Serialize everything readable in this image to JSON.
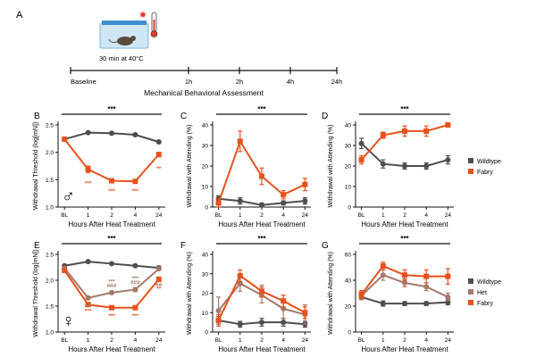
{
  "figure": {
    "panel_a": {
      "label": "A",
      "condition_label": "30 min at 40°C",
      "timeline_ticks": [
        "Baseline",
        "1h",
        "2h",
        "4h",
        "24h"
      ],
      "timeline_title": "Mechanical Behavioral Assessment"
    },
    "colors": {
      "wildtype": "#4d4d4d",
      "fabry": "#e8511c",
      "het": "#a6786a",
      "sig_fabry": "#e8511c",
      "sig_het": "#a6786a",
      "heat_mark": "#e53b2c",
      "cage": "#cfe7f5"
    }
  },
  "chart_data": [
    {
      "id": "B",
      "label": "B",
      "type": "line",
      "title": "",
      "sex_symbol": "♂",
      "xlabel": "Hours After Heat Treatment",
      "ylabel": "Withdrawal Threshold (log[mN])",
      "categories": [
        "BL",
        "1",
        "2",
        "4",
        "24"
      ],
      "ylim": [
        1.0,
        2.5
      ],
      "yticks": [
        1.0,
        1.5,
        2.0,
        2.5
      ],
      "ytick_labels": [
        "1.0",
        "1.5",
        "2.0",
        "2.5"
      ],
      "overall_sig": "***",
      "series": [
        {
          "name": "Wildtype",
          "color_key": "wildtype",
          "values": [
            2.24,
            2.36,
            2.35,
            2.32,
            2.19
          ],
          "errors": [
            0.02,
            0.02,
            0.02,
            0.02,
            0.02
          ]
        },
        {
          "name": "Fabry",
          "color_key": "fabry",
          "values": [
            2.24,
            1.69,
            1.48,
            1.47,
            1.96
          ],
          "errors": [
            0.03,
            0.06,
            0.03,
            0.03,
            0.04
          ]
        }
      ],
      "annotations": [
        {
          "x": "1",
          "y": 1.4,
          "text": "***",
          "color_key": "sig_fabry"
        },
        {
          "x": "2",
          "y": 1.26,
          "text": "***",
          "color_key": "sig_fabry"
        },
        {
          "x": "4",
          "y": 1.26,
          "text": "***",
          "color_key": "sig_fabry"
        },
        {
          "x": "24",
          "y": 1.67,
          "text": "**",
          "color_key": "sig_fabry"
        }
      ],
      "legend": []
    },
    {
      "id": "C",
      "label": "C",
      "type": "line",
      "title": "",
      "sex_symbol": "",
      "xlabel": "Hours After Heat Treatment",
      "ylabel": "Withdrawal with Attending (%)",
      "categories": [
        "BL",
        "1",
        "2",
        "4",
        "24"
      ],
      "ylim": [
        0,
        40
      ],
      "yticks": [
        0,
        10,
        20,
        30,
        40
      ],
      "ytick_labels": [
        "0",
        "10",
        "20",
        "30",
        "40"
      ],
      "overall_sig": "***",
      "series": [
        {
          "name": "Wildtype",
          "color_key": "wildtype",
          "values": [
            4,
            3,
            1,
            2,
            3
          ],
          "errors": [
            1.5,
            1.5,
            1,
            1,
            1.5
          ]
        },
        {
          "name": "Fabry",
          "color_key": "fabry",
          "values": [
            2,
            32,
            15,
            6,
            11
          ],
          "errors": [
            2,
            5,
            4,
            2,
            3
          ]
        }
      ],
      "annotations": [],
      "legend": []
    },
    {
      "id": "D",
      "label": "D",
      "type": "line",
      "title": "",
      "sex_symbol": "",
      "xlabel": "Hours After Heat Treatment",
      "ylabel": "Withdrawal with Attending (%)",
      "categories": [
        "BL",
        "1",
        "2",
        "4",
        "24"
      ],
      "ylim": [
        0,
        40
      ],
      "yticks": [
        0,
        10,
        20,
        30,
        40
      ],
      "ytick_labels": [
        "0",
        "10",
        "20",
        "30",
        "40"
      ],
      "overall_sig": "***",
      "series": [
        {
          "name": "Wildtype",
          "color_key": "wildtype",
          "values": [
            31,
            21,
            20,
            20,
            23
          ],
          "errors": [
            2.5,
            2,
            1.5,
            1.5,
            2
          ]
        },
        {
          "name": "Fabry",
          "color_key": "fabry",
          "values": [
            23,
            35,
            37,
            37,
            40
          ],
          "errors": [
            2,
            1.5,
            2.5,
            2.5,
            1
          ]
        }
      ],
      "annotations": [],
      "legend": [
        "Wildtype",
        "Fabry"
      ]
    },
    {
      "id": "E",
      "label": "E",
      "type": "line",
      "title": "",
      "sex_symbol": "♀",
      "xlabel": "Hours After Heat Treatment",
      "ylabel": "Withdrawal Threshold (log[mN])",
      "categories": [
        "BL",
        "1",
        "2",
        "4",
        "24"
      ],
      "ylim": [
        1.0,
        2.5
      ],
      "yticks": [
        1.0,
        1.5,
        2.0,
        2.5
      ],
      "ytick_labels": [
        "1.0",
        "1.5",
        "2.0",
        "2.5"
      ],
      "overall_sig": "***",
      "series": [
        {
          "name": "Wildtype",
          "color_key": "wildtype",
          "values": [
            2.28,
            2.36,
            2.32,
            2.28,
            2.24
          ],
          "errors": [
            0.02,
            0.02,
            0.02,
            0.02,
            0.03
          ]
        },
        {
          "name": "Het",
          "color_key": "het",
          "values": [
            2.23,
            1.66,
            1.76,
            1.82,
            2.22
          ],
          "errors": [
            0.03,
            0.03,
            0.03,
            0.04,
            0.03
          ]
        },
        {
          "name": "Fabry",
          "color_key": "fabry",
          "values": [
            2.19,
            1.53,
            1.47,
            1.47,
            2.02
          ],
          "errors": [
            0.03,
            0.02,
            0.02,
            0.02,
            0.04
          ]
        }
      ],
      "annotations": [
        {
          "x": "1",
          "y": 1.46,
          "text": "***",
          "color_key": "sig_het"
        },
        {
          "x": "1",
          "y": 1.37,
          "text": "***",
          "color_key": "sig_fabry"
        },
        {
          "x": "2",
          "y": 1.94,
          "text": "***",
          "color_key": "sig_het"
        },
        {
          "x": "2",
          "y": 1.86,
          "text": "###",
          "color_key": "sig_het"
        },
        {
          "x": "2",
          "y": 1.28,
          "text": "***",
          "color_key": "sig_fabry"
        },
        {
          "x": "4",
          "y": 2.0,
          "text": "***",
          "color_key": "sig_het"
        },
        {
          "x": "4",
          "y": 1.92,
          "text": "###",
          "color_key": "sig_het"
        },
        {
          "x": "4",
          "y": 1.28,
          "text": "***",
          "color_key": "sig_fabry"
        },
        {
          "x": "24",
          "y": 1.88,
          "text": "##",
          "color_key": "sig_het"
        },
        {
          "x": "24",
          "y": 1.8,
          "text": "**",
          "color_key": "sig_fabry"
        }
      ],
      "legend": []
    },
    {
      "id": "F",
      "label": "F",
      "type": "line",
      "title": "",
      "sex_symbol": "",
      "xlabel": "Hours After Heat Treatment",
      "ylabel": "Withdrawal with Attending (%)",
      "categories": [
        "BL",
        "1",
        "2",
        "4",
        "24"
      ],
      "ylim": [
        0,
        40
      ],
      "yticks": [
        0,
        10,
        20,
        30,
        40
      ],
      "ytick_labels": [
        "0",
        "10",
        "20",
        "30",
        "40"
      ],
      "overall_sig": "***",
      "series": [
        {
          "name": "Wildtype",
          "color_key": "wildtype",
          "values": [
            6,
            4,
            5,
            5,
            4
          ],
          "errors": [
            2,
            1.5,
            2,
            2,
            1.5
          ]
        },
        {
          "name": "Het",
          "color_key": "het",
          "values": [
            11,
            25,
            19,
            12,
            9
          ],
          "errors": [
            7,
            4,
            4,
            5,
            5
          ]
        },
        {
          "name": "Fabry",
          "color_key": "fabry",
          "values": [
            6,
            29,
            21,
            16,
            10
          ],
          "errors": [
            3,
            3,
            3,
            3,
            3
          ]
        }
      ],
      "annotations": [],
      "legend": []
    },
    {
      "id": "G",
      "label": "G",
      "type": "line",
      "title": "",
      "sex_symbol": "",
      "xlabel": "Hours After Heat Treatment",
      "ylabel": "Withdrawal with Attending (%)",
      "categories": [
        "BL",
        "1",
        "2",
        "4",
        "24"
      ],
      "ylim": [
        0,
        60
      ],
      "yticks": [
        0,
        20,
        40,
        60
      ],
      "ytick_labels": [
        "0",
        "20",
        "40",
        "60"
      ],
      "overall_sig": "***",
      "series": [
        {
          "name": "Wildtype",
          "color_key": "wildtype",
          "values": [
            27,
            22,
            22,
            22,
            23
          ],
          "errors": [
            2,
            2,
            1.5,
            1.5,
            2
          ]
        },
        {
          "name": "Het",
          "color_key": "het",
          "values": [
            28,
            44,
            38,
            35,
            27
          ],
          "errors": [
            3,
            4,
            3,
            3,
            3
          ]
        },
        {
          "name": "Fabry",
          "color_key": "fabry",
          "values": [
            29,
            51,
            44,
            43,
            43
          ],
          "errors": [
            3,
            3,
            4,
            5,
            6
          ]
        }
      ],
      "annotations": [],
      "legend": [
        "Wildtype",
        "Het",
        "Fabry"
      ]
    }
  ]
}
